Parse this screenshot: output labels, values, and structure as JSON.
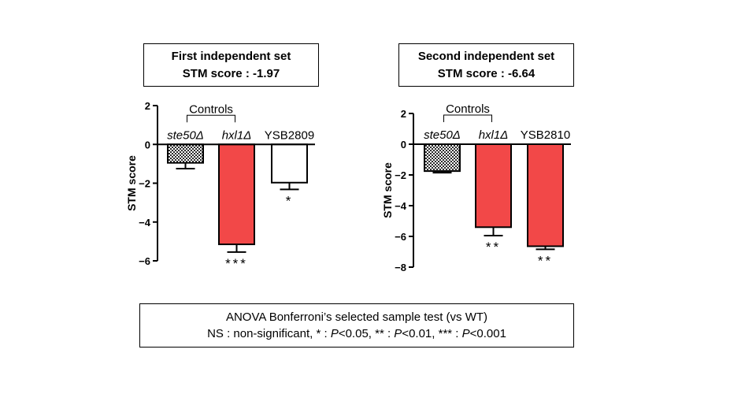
{
  "panels": [
    {
      "title_line1": "First independent set",
      "title_line2": "STM score : -1.97"
    },
    {
      "title_line1": "Second independent set",
      "title_line2": "STM score : -6.64"
    }
  ],
  "footer": {
    "line1": "ANOVA Bonferroni’s selected sample test (vs WT)",
    "line2_parts": [
      "NS : non-significant, * : ",
      "P",
      "<0.05, ** : ",
      "P",
      "<0.01, *** : ",
      "P",
      "<0.001"
    ]
  },
  "colors": {
    "red": "#f24848",
    "white": "#ffffff",
    "hatched": "#2b2b2b"
  },
  "chart_data": [
    {
      "type": "bar",
      "ylabel": "STM score",
      "ylim": [
        -6,
        2
      ],
      "yticks": [
        2,
        0,
        -2,
        -4,
        -6
      ],
      "bracket_label": "Controls",
      "bracket_groups": [
        0,
        1
      ],
      "categories": [
        "ste50Δ",
        "hxl1Δ",
        "YSB2809"
      ],
      "category_italic": [
        true,
        true,
        false
      ],
      "values": [
        -0.95,
        -5.15,
        -1.97
      ],
      "errors": [
        0.3,
        0.4,
        0.35
      ],
      "fills": [
        "hatched",
        "red",
        "white"
      ],
      "significance": [
        "",
        "***",
        "*"
      ]
    },
    {
      "type": "bar",
      "ylabel": "STM score",
      "ylim": [
        -8,
        2
      ],
      "yticks": [
        2,
        0,
        -2,
        -4,
        -6,
        -8
      ],
      "bracket_label": "Controls",
      "bracket_groups": [
        0,
        1
      ],
      "categories": [
        "ste50Δ",
        "hxl1Δ",
        "YSB2810"
      ],
      "category_italic": [
        true,
        true,
        false
      ],
      "values": [
        -1.75,
        -5.4,
        -6.64
      ],
      "errors": [
        0.1,
        0.55,
        0.2
      ],
      "fills": [
        "hatched",
        "red",
        "red"
      ],
      "significance": [
        "",
        "**",
        "**"
      ]
    }
  ]
}
